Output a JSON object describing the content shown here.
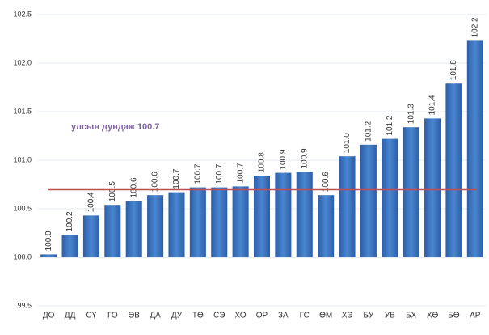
{
  "chart_data": {
    "type": "bar",
    "categories": [
      "ДО",
      "ДД",
      "СҮ",
      "ГО",
      "ӨВ",
      "ДА",
      "ДУ",
      "ТӨ",
      "СЭ",
      "ХО",
      "ОР",
      "ЗА",
      "ГС",
      "ӨМ",
      "ХЭ",
      "БУ",
      "УВ",
      "БХ",
      "ХӨ",
      "БӨ",
      "АР"
    ],
    "values": [
      100.03,
      100.23,
      100.43,
      100.54,
      100.58,
      100.64,
      100.67,
      100.72,
      100.72,
      100.73,
      100.84,
      100.87,
      100.88,
      100.64,
      101.04,
      101.16,
      101.22,
      101.34,
      101.43,
      101.79,
      102.23
    ],
    "value_labels": [
      "100.0",
      "100.2",
      "100.4",
      "100.5",
      "100.6",
      "100.6",
      "100.7",
      "100.7",
      "100.7",
      "100.7",
      "100.8",
      "100.9",
      "100.9",
      "100.6",
      "101.0",
      "101.2",
      "101.2",
      "101.3",
      "101.4",
      "101.8",
      "102.2"
    ],
    "color": "#3a75c4",
    "ylim": [
      99.5,
      102.5
    ],
    "yticks": [
      99.5,
      {
        "value": 100,
        "label": "100.0"
      },
      100.5,
      {
        "value": 101,
        "label": "101.0"
      },
      101.5,
      {
        "value": 102,
        "label": "102.0"
      },
      102.5
    ],
    "x_axis_crossing": 100,
    "grid": true,
    "reference_line": {
      "value": 100.7,
      "color": "#c0504d"
    },
    "annotation": "улсын дундаж 100.7"
  }
}
